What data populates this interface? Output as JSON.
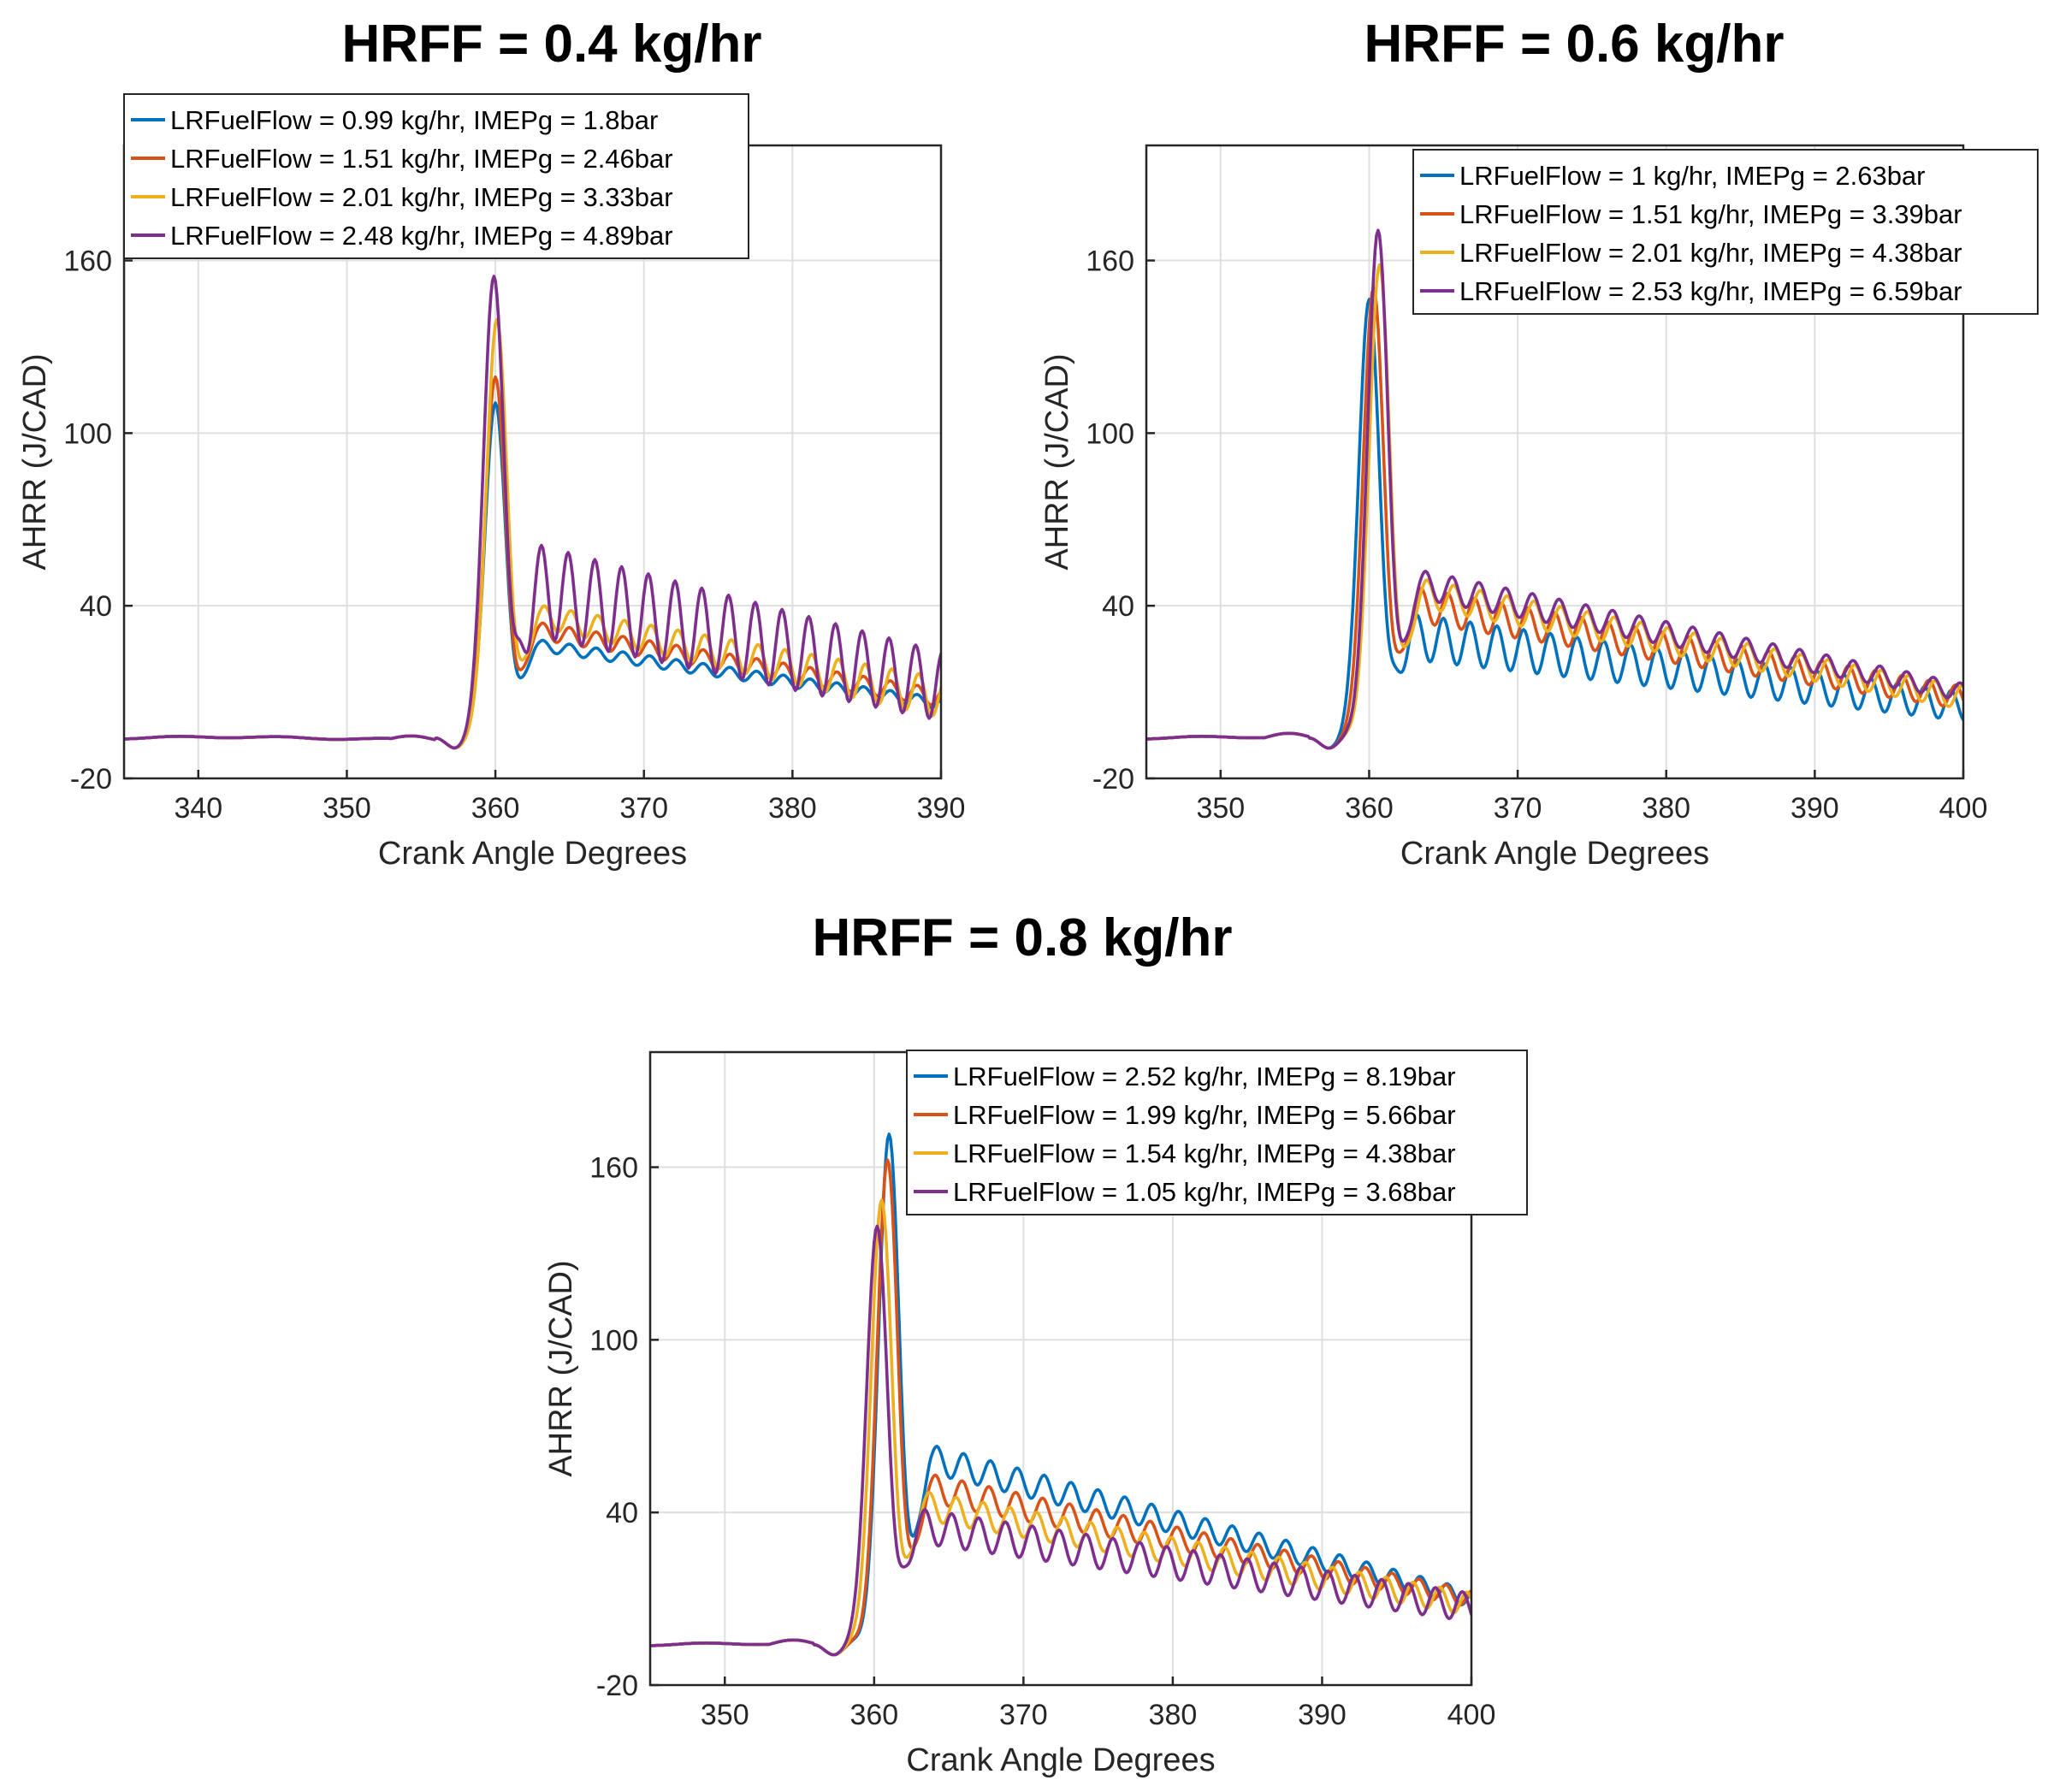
{
  "chart_data": [
    {
      "type": "line",
      "title": "HRFF = 0.4 kg/hr",
      "xlabel": "Crank Angle Degrees",
      "ylabel": "AHRR (J/CAD)",
      "xlim": [
        335,
        390
      ],
      "ylim": [
        -20,
        200
      ],
      "xticks": [
        340,
        350,
        360,
        370,
        380,
        390
      ],
      "yticks": [
        -20,
        40,
        100,
        160
      ],
      "grid": true,
      "legend_position": "top-left",
      "series": [
        {
          "name": "LRFuelFlow = 0.99 kg/hr, IMEPg = 1.8bar",
          "color": "#0072BD",
          "peak_x": 360.0,
          "peak_y": 115,
          "wave_start": 26,
          "wave_end": 6,
          "amp_start": 2,
          "amp_end": 2
        },
        {
          "name": "LRFuelFlow = 1.51 kg/hr, IMEPg = 2.46bar",
          "color": "#D95319",
          "peak_x": 360.0,
          "peak_y": 124,
          "wave_start": 31,
          "wave_end": 8,
          "amp_start": 3,
          "amp_end": 3
        },
        {
          "name": "LRFuelFlow = 2.01 kg/hr, IMEPg = 3.33bar",
          "color": "#EDB120",
          "peak_x": 360.1,
          "peak_y": 144,
          "wave_start": 36,
          "wave_end": 8,
          "amp_start": 4,
          "amp_end": 7
        },
        {
          "name": "LRFuelFlow = 2.48 kg/hr, IMEPg = 4.89bar",
          "color": "#7E2F8E",
          "peak_x": 359.9,
          "peak_y": 159,
          "wave_start": 45,
          "wave_end": 12,
          "amp_start": 16,
          "amp_end": 12
        }
      ]
    },
    {
      "type": "line",
      "title": "HRFF = 0.6 kg/hr",
      "xlabel": "Crank Angle Degrees",
      "ylabel": "AHRR (J/CAD)",
      "xlim": [
        345,
        400
      ],
      "ylim": [
        -20,
        200
      ],
      "xticks": [
        350,
        360,
        370,
        380,
        390,
        400
      ],
      "yticks": [
        -20,
        40,
        100,
        160
      ],
      "grid": true,
      "legend_position": "top-right",
      "series": [
        {
          "name": "LRFuelFlow = 1 kg/hr, IMEPg = 2.63bar",
          "color": "#0072BD",
          "peak_x": 360.0,
          "peak_y": 151,
          "wave_start": 29,
          "wave_end": 5,
          "amp_start": 8,
          "amp_end": 5
        },
        {
          "name": "LRFuelFlow = 1.51 kg/hr, IMEPg = 3.39bar",
          "color": "#D95319",
          "peak_x": 360.3,
          "peak_y": 155,
          "wave_start": 40,
          "wave_end": 8,
          "amp_start": 6,
          "amp_end": 4
        },
        {
          "name": "LRFuelFlow = 2.01 kg/hr, IMEPg = 4.38bar",
          "color": "#EDB120",
          "peak_x": 360.7,
          "peak_y": 163,
          "wave_start": 44,
          "wave_end": 8,
          "amp_start": 5,
          "amp_end": 4
        },
        {
          "name": "LRFuelFlow = 2.53 kg/hr, IMEPg = 6.59bar",
          "color": "#7E2F8E",
          "peak_x": 360.6,
          "peak_y": 175,
          "wave_start": 47,
          "wave_end": 10,
          "amp_start": 5,
          "amp_end": 3
        }
      ]
    },
    {
      "type": "line",
      "title": "HRFF = 0.8 kg/hr",
      "xlabel": "Crank Angle Degrees",
      "ylabel": "AHRR (J/CAD)",
      "xlim": [
        345,
        400
      ],
      "ylim": [
        -20,
        200
      ],
      "xticks": [
        350,
        360,
        370,
        380,
        390,
        400
      ],
      "yticks": [
        -20,
        40,
        100,
        160
      ],
      "grid": true,
      "legend_position": "top-right",
      "series": [
        {
          "name": "LRFuelFlow = 2.52 kg/hr, IMEPg = 8.19bar",
          "color": "#0072BD",
          "peak_x": 361.0,
          "peak_y": 176,
          "wave_start": 58,
          "wave_end": 10,
          "amp_start": 5,
          "amp_end": 3
        },
        {
          "name": "LRFuelFlow = 1.99 kg/hr, IMEPg = 5.66bar",
          "color": "#D95319",
          "peak_x": 360.9,
          "peak_y": 167,
          "wave_start": 48,
          "wave_end": 10,
          "amp_start": 5,
          "amp_end": 3
        },
        {
          "name": "LRFuelFlow = 1.54 kg/hr, IMEPg = 4.38bar",
          "color": "#EDB120",
          "peak_x": 360.5,
          "peak_y": 153,
          "wave_start": 42,
          "wave_end": 8,
          "amp_start": 5,
          "amp_end": 4
        },
        {
          "name": "LRFuelFlow = 1.05 kg/hr, IMEPg = 3.68bar",
          "color": "#7E2F8E",
          "peak_x": 360.2,
          "peak_y": 144,
          "wave_start": 35,
          "wave_end": 7,
          "amp_start": 6,
          "amp_end": 5
        }
      ]
    }
  ]
}
